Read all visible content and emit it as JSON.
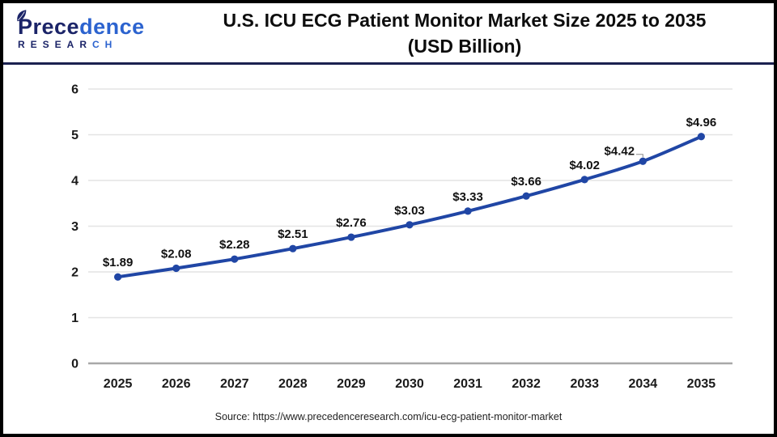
{
  "header": {
    "logo": {
      "p1": "Prece",
      "p2": "dence",
      "r1": "RESEAR",
      "r2": "CH"
    },
    "title_line1": "U.S. ICU ECG Patient Monitor Market Size 2025 to 2035",
    "title_line2": "(USD Billion)"
  },
  "footer": {
    "source": "Source: https://www.precedenceresearch.com/icu-ecg-patient-monitor-market"
  },
  "colors": {
    "line": "#2046a5",
    "marker": "#2046a5",
    "grid": "#e4e4e4",
    "axis": "#a8a8a8",
    "tick_label": "#1a1a1a",
    "data_label": "#111111",
    "callout": "#8c8c8c",
    "divider": "#1b2150",
    "logo_dark": "#1b2468",
    "logo_blue": "#2c63cf"
  },
  "chart_data": {
    "type": "line",
    "title": "U.S. ICU ECG Patient Monitor Market Size 2025 to 2035 (USD Billion)",
    "x": [
      "2025",
      "2026",
      "2027",
      "2028",
      "2029",
      "2030",
      "2031",
      "2032",
      "2033",
      "2034",
      "2035"
    ],
    "series": [
      {
        "name": "U.S. ICU ECG Patient Monitor Market Size (USD Billion)",
        "values": [
          1.89,
          2.08,
          2.28,
          2.51,
          2.76,
          3.03,
          3.33,
          3.66,
          4.02,
          4.42,
          4.96
        ]
      }
    ],
    "point_labels": [
      "$1.89",
      "$2.08",
      "$2.28",
      "$2.51",
      "$2.76",
      "$3.03",
      "$3.33",
      "$3.66",
      "$4.02",
      "$4.42",
      "$4.96"
    ],
    "xlabel": "",
    "ylabel": "",
    "ylim": [
      0,
      6
    ],
    "yticks": [
      0,
      1,
      2,
      3,
      4,
      5,
      6
    ],
    "grid": "horizontal",
    "legend": "none",
    "smooth": true
  }
}
